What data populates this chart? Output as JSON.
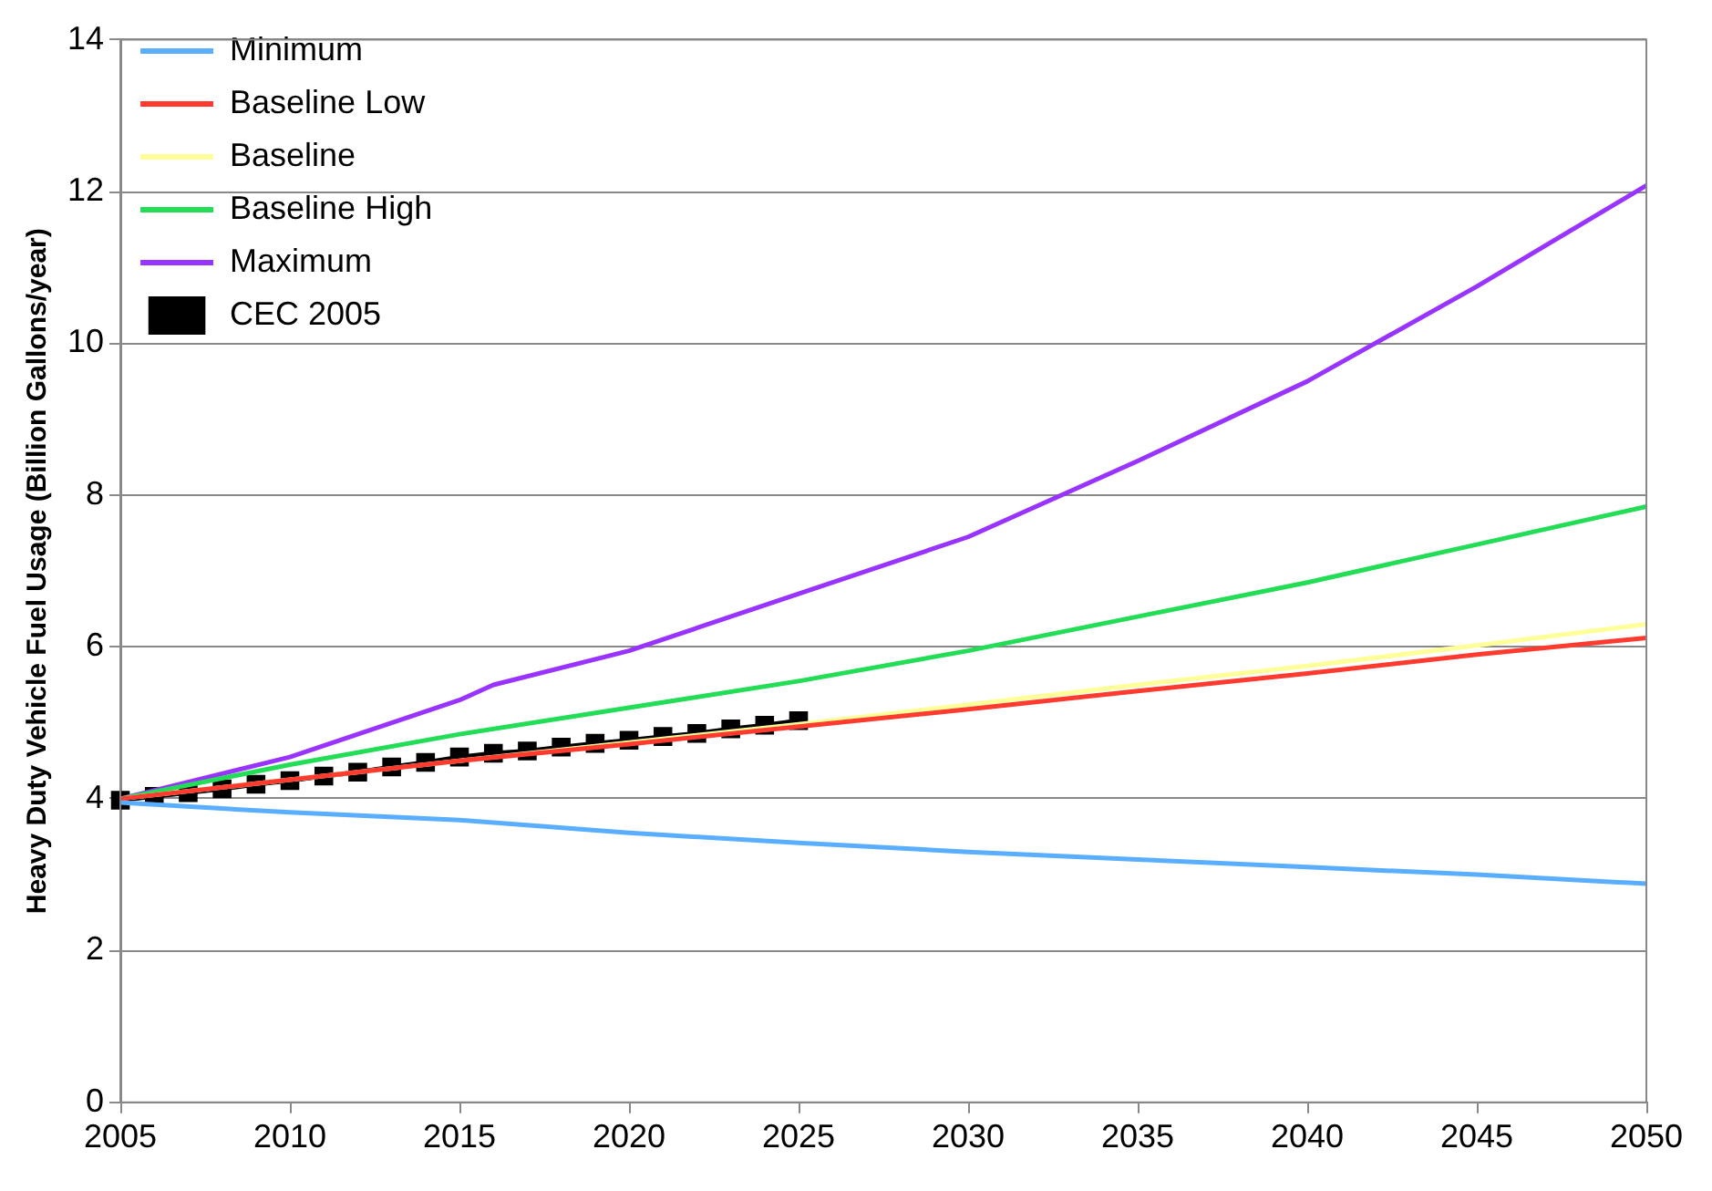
{
  "chart_data": {
    "type": "line",
    "ylabel": "Heavy Duty Vehicle Fuel Usage (Billion Gallons/year)",
    "xlim": [
      2005,
      2050
    ],
    "xticks": [
      2005,
      2010,
      2015,
      2020,
      2025,
      2030,
      2035,
      2040,
      2045,
      2050
    ],
    "ylim": [
      0,
      14
    ],
    "yticks": [
      0,
      2,
      4,
      6,
      8,
      10,
      12,
      14
    ],
    "grid": "y",
    "legend": "top left",
    "line_style": "solid",
    "series": [
      {
        "name": "Minimum",
        "color": "#5aaeff",
        "marker": "none",
        "x": [
          2005,
          2010,
          2015,
          2020,
          2025,
          2030,
          2035,
          2040,
          2045,
          2050
        ],
        "values": [
          3.95,
          3.82,
          3.72,
          3.55,
          3.42,
          3.3,
          3.2,
          3.1,
          3.0,
          2.88
        ]
      },
      {
        "name": "Baseline Low",
        "color": "#ff3b30",
        "marker": "none",
        "x": [
          2005,
          2010,
          2015,
          2020,
          2025,
          2030,
          2035,
          2040,
          2045,
          2050
        ],
        "values": [
          4.0,
          4.25,
          4.5,
          4.72,
          4.95,
          5.18,
          5.42,
          5.65,
          5.9,
          6.12
        ]
      },
      {
        "name": "Baseline",
        "color": "#ffff99",
        "marker": "none",
        "x": [
          2005,
          2010,
          2015,
          2020,
          2025,
          2030,
          2035,
          2040,
          2045,
          2050
        ],
        "values": [
          4.0,
          4.25,
          4.5,
          4.74,
          4.98,
          5.24,
          5.5,
          5.75,
          6.02,
          6.3
        ]
      },
      {
        "name": "Baseline High",
        "color": "#22dd55",
        "marker": "none",
        "x": [
          2005,
          2010,
          2015,
          2020,
          2025,
          2030,
          2035,
          2040,
          2045,
          2050
        ],
        "values": [
          4.0,
          4.45,
          4.85,
          5.2,
          5.55,
          5.95,
          6.4,
          6.85,
          7.35,
          7.85
        ]
      },
      {
        "name": "Maximum",
        "color": "#9933ff",
        "marker": "none",
        "x": [
          2005,
          2010,
          2015,
          2016,
          2020,
          2025,
          2030,
          2035,
          2040,
          2045,
          2050
        ],
        "values": [
          4.0,
          4.55,
          5.3,
          5.5,
          5.95,
          6.7,
          7.45,
          8.45,
          9.5,
          10.75,
          12.08
        ]
      },
      {
        "name": "CEC 2005",
        "color": "#000000",
        "marker": "square",
        "x": [
          2005,
          2006,
          2007,
          2008,
          2009,
          2010,
          2011,
          2012,
          2013,
          2014,
          2015,
          2016,
          2017,
          2018,
          2019,
          2020,
          2021,
          2022,
          2023,
          2024,
          2025
        ],
        "values": [
          3.98,
          4.03,
          4.08,
          4.13,
          4.19,
          4.24,
          4.3,
          4.35,
          4.42,
          4.48,
          4.55,
          4.6,
          4.63,
          4.68,
          4.73,
          4.77,
          4.82,
          4.86,
          4.92,
          4.97,
          5.03
        ]
      }
    ]
  }
}
